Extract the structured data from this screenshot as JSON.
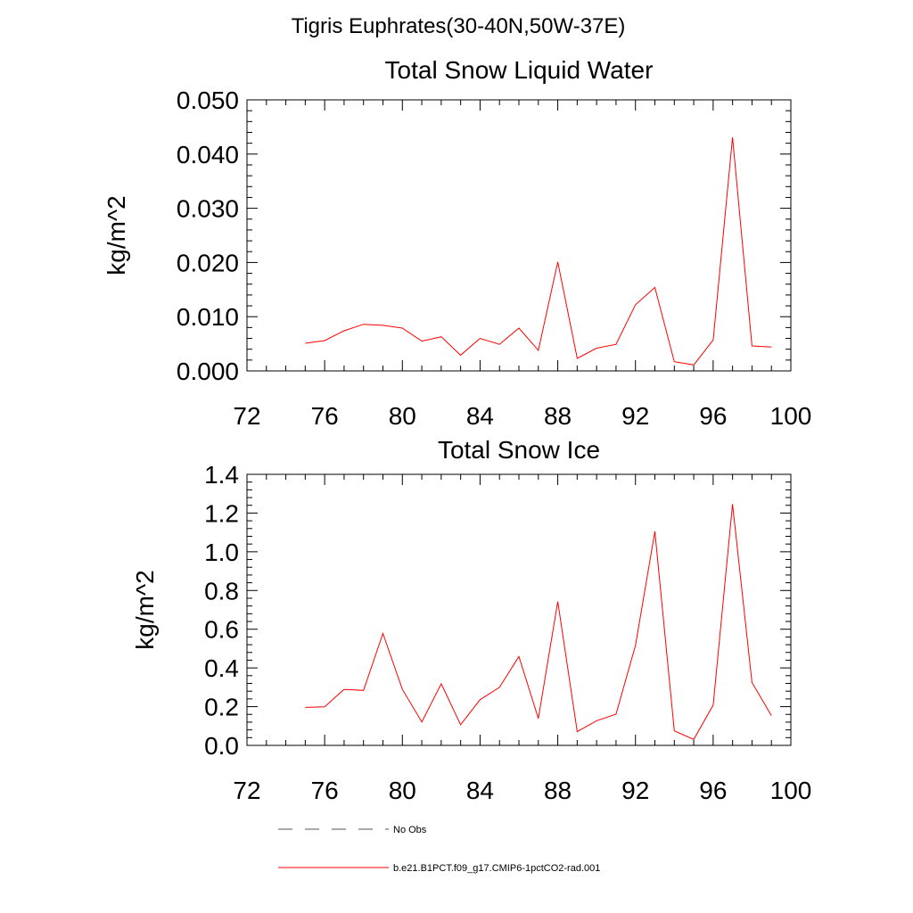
{
  "suptitle": "Tigris Euphrates(30-40N,50W-37E)",
  "chart_data": [
    {
      "type": "line",
      "title": "Total Snow Liquid Water",
      "xlabel": "",
      "ylabel": "kg/m^2",
      "xlim": [
        72,
        100
      ],
      "ylim": [
        0,
        0.05
      ],
      "xticks": [
        72,
        76,
        80,
        84,
        88,
        92,
        96,
        100
      ],
      "xtick_labels": [
        "72",
        "76",
        "80",
        "84",
        "88",
        "92",
        "96",
        "100"
      ],
      "yticks": [
        0,
        0.01,
        0.02,
        0.03,
        0.04,
        0.05
      ],
      "ytick_labels": [
        "0.000",
        "0.010",
        "0.020",
        "0.030",
        "0.040",
        "0.050"
      ],
      "x": [
        75,
        76,
        77,
        78,
        79,
        80,
        81,
        82,
        83,
        84,
        85,
        86,
        87,
        88,
        89,
        90,
        91,
        92,
        93,
        94,
        95,
        96,
        97,
        98,
        99
      ],
      "series": [
        {
          "name": "b.e21.B1PCT.f09_g17.CMIP6-1pctCO2-rad.001",
          "color": "#ff0000",
          "values": [
            0.0051,
            0.0056,
            0.0074,
            0.0086,
            0.0084,
            0.0079,
            0.0055,
            0.0063,
            0.0029,
            0.006,
            0.0049,
            0.0079,
            0.0038,
            0.0201,
            0.0023,
            0.0042,
            0.0049,
            0.0122,
            0.0154,
            0.0017,
            0.0011,
            0.0057,
            0.0431,
            0.0046,
            0.0044
          ]
        }
      ]
    },
    {
      "type": "line",
      "title": "Total Snow Ice",
      "xlabel": "",
      "ylabel": "kg/m^2",
      "xlim": [
        72,
        100
      ],
      "ylim": [
        0,
        1.4
      ],
      "xticks": [
        72,
        76,
        80,
        84,
        88,
        92,
        96,
        100
      ],
      "xtick_labels": [
        "72",
        "76",
        "80",
        "84",
        "88",
        "92",
        "96",
        "100"
      ],
      "yticks": [
        0,
        0.2,
        0.4,
        0.6,
        0.8,
        1.0,
        1.2,
        1.4
      ],
      "ytick_labels": [
        "0.0",
        "0.2",
        "0.4",
        "0.6",
        "0.8",
        "1.0",
        "1.2",
        "1.4"
      ],
      "x": [
        75,
        76,
        77,
        78,
        79,
        80,
        81,
        82,
        83,
        84,
        85,
        86,
        87,
        88,
        89,
        90,
        91,
        92,
        93,
        94,
        95,
        96,
        97,
        98,
        99
      ],
      "series": [
        {
          "name": "b.e21.B1PCT.f09_g17.CMIP6-1pctCO2-rad.001",
          "color": "#ff0000",
          "values": [
            0.196,
            0.199,
            0.289,
            0.284,
            0.578,
            0.289,
            0.121,
            0.318,
            0.107,
            0.236,
            0.3,
            0.459,
            0.139,
            0.743,
            0.071,
            0.127,
            0.161,
            0.516,
            1.105,
            0.075,
            0.031,
            0.208,
            1.246,
            0.325,
            0.154
          ]
        }
      ]
    }
  ],
  "legend": [
    {
      "label": "No Obs",
      "color": "#000000",
      "dash": "dashed"
    },
    {
      "label": "b.e21.B1PCT.f09_g17.CMIP6-1pctCO2-rad.001",
      "color": "#ff0000",
      "dash": "solid"
    }
  ]
}
